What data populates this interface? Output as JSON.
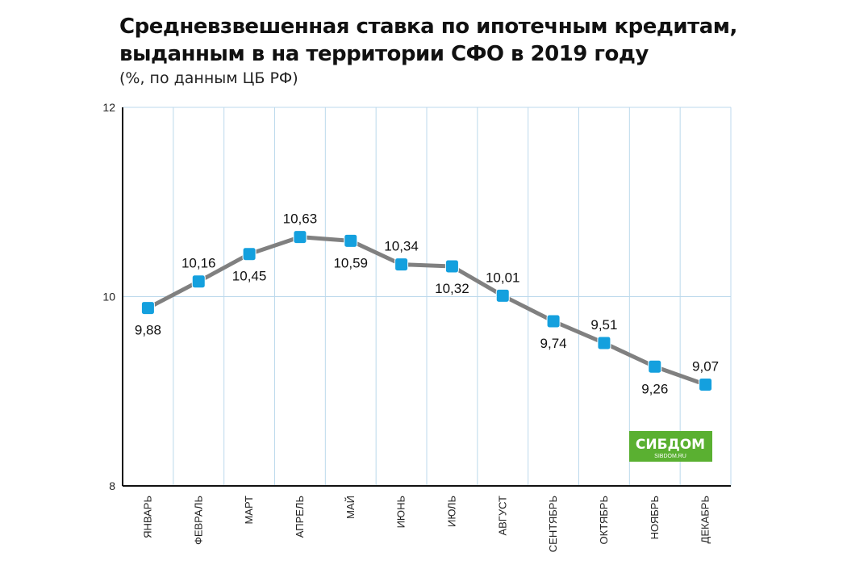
{
  "chart_data": {
    "type": "line",
    "title_lines": [
      "Средневзвешенная ставка по ипотечным кредитам,",
      "выданным в на территории СФО в 2019 году"
    ],
    "subtitle": "(%, по данным ЦБ РФ)",
    "categories": [
      "ЯНВАРЬ",
      "ФЕВРАЛЬ",
      "МАРТ",
      "АПРЕЛЬ",
      "МАЙ",
      "ИЮНЬ",
      "ИЮЛЬ",
      "АВГУСТ",
      "СЕНТЯБРЬ",
      "ОКТЯБРЬ",
      "НОЯБРЬ",
      "ДЕКАБРЬ"
    ],
    "values": [
      9.88,
      10.16,
      10.45,
      10.63,
      10.59,
      10.34,
      10.32,
      10.01,
      9.74,
      9.51,
      9.26,
      9.07
    ],
    "value_labels": [
      "9,88",
      "10,16",
      "10,45",
      "10,63",
      "10,59",
      "10,34",
      "10,32",
      "10,01",
      "9,74",
      "9,51",
      "9,26",
      "9,07"
    ],
    "label_positions": [
      "below",
      "above",
      "below",
      "above",
      "below",
      "above",
      "below",
      "above",
      "below",
      "above",
      "below",
      "above"
    ],
    "ylim": [
      8,
      12
    ],
    "yticks": [
      8,
      10,
      12
    ],
    "ytick_labels": [
      "8",
      "10",
      "12"
    ],
    "grid": true,
    "colors": {
      "line": "#808080",
      "marker": "#14a0de",
      "grid": "#bcd9ec",
      "axis": "#111111"
    }
  },
  "logo": {
    "name": "СИБДОМ",
    "url": "SIBDOM.RU",
    "color": "#5ab031"
  }
}
